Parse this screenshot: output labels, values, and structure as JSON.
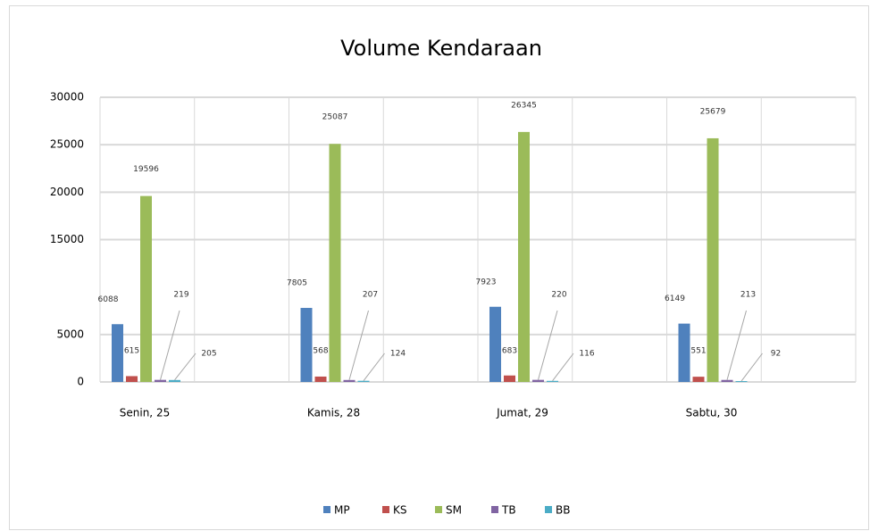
{
  "chart_data": {
    "type": "bar",
    "title": "Volume Kendaraan",
    "categories": [
      "Senin, 25",
      "Kamis, 28",
      "Jumat, 29",
      "Sabtu, 30"
    ],
    "series": [
      {
        "name": "MP",
        "color": "#4f81bd",
        "values": [
          6088,
          7805,
          7923,
          6149
        ]
      },
      {
        "name": "KS",
        "color": "#c0504d",
        "values": [
          615,
          568,
          683,
          551
        ]
      },
      {
        "name": "SM",
        "color": "#9bbb59",
        "values": [
          19596,
          25087,
          26345,
          25679
        ]
      },
      {
        "name": "TB",
        "color": "#8064a2",
        "values": [
          219,
          207,
          220,
          213
        ]
      },
      {
        "name": "BB",
        "color": "#4bacc6",
        "values": [
          205,
          124,
          116,
          92
        ]
      }
    ],
    "ylim": [
      0,
      30000
    ],
    "yticks": [
      0,
      5000,
      15000,
      20000,
      25000,
      30000
    ],
    "grid": true,
    "legend": "bottom"
  }
}
